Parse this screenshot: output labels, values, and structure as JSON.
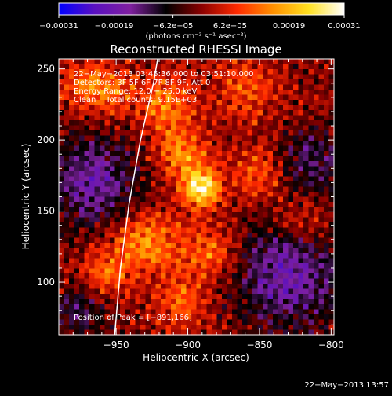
{
  "chart_data": {
    "type": "heatmap",
    "title": "Reconstructed RHESSI Image",
    "xlabel": "Heliocentric X (arcsec)",
    "ylabel": "Heliocentric Y (arcsec)",
    "xlim": [
      -990,
      -798
    ],
    "ylim": [
      63,
      257
    ],
    "x_ticks": [
      -950,
      -900,
      -850,
      -800
    ],
    "x_tick_labels": [
      "−950",
      "−900",
      "−850",
      "−800"
    ],
    "y_ticks": [
      100,
      150,
      200,
      250
    ],
    "y_tick_labels": [
      "100",
      "150",
      "200",
      "250"
    ],
    "colorbar": {
      "min": -0.00031,
      "max": 0.00031,
      "ticks": [
        -0.00031,
        -0.00019,
        -6.2e-05,
        6.2e-05,
        0.00019,
        0.00031
      ],
      "tick_labels": [
        "−0.00031",
        "−0.00019",
        "−6.2e−05",
        "6.2e−05",
        "0.00019",
        "0.00031"
      ],
      "unit_label": "(photons cm⁻² s⁻¹ asec⁻²)",
      "colors": [
        "#0000ff",
        "#5a10c0",
        "#8020a0",
        "#000000",
        "#8a0000",
        "#ff2a00",
        "#ff9000",
        "#ffe020",
        "#ffffff"
      ]
    },
    "annotations": [
      "22−May−2013 03:45:36.000 to 03:51:10.000",
      "Detectors: 3F 5F 6F 7F 8F 9F, Att 0",
      "Energy Range: 12.0 − 25.0 keV",
      "Clean    Total counts: 9.15E+03"
    ],
    "peak_label": "Position of Peak = [−891,166]",
    "peak": {
      "x": -891,
      "y": 166
    },
    "limb_curve": [
      [
        -951,
        63
      ],
      [
        -947,
        110
      ],
      [
        -941,
        155
      ],
      [
        -933,
        200
      ],
      [
        -924,
        240
      ],
      [
        -921,
        257
      ]
    ],
    "sources": [
      {
        "x": -891,
        "y": 166,
        "amp": 1.0,
        "sigma": 9
      },
      {
        "x": -905,
        "y": 190,
        "amp": 0.55,
        "sigma": 12
      },
      {
        "x": -930,
        "y": 128,
        "amp": 0.55,
        "sigma": 16
      },
      {
        "x": -885,
        "y": 120,
        "amp": 0.45,
        "sigma": 14
      },
      {
        "x": -915,
        "y": 225,
        "amp": 0.5,
        "sigma": 14
      },
      {
        "x": -955,
        "y": 235,
        "amp": 0.45,
        "sigma": 12
      },
      {
        "x": -960,
        "y": 105,
        "amp": 0.4,
        "sigma": 12
      },
      {
        "x": -850,
        "y": 175,
        "amp": 0.35,
        "sigma": 14
      },
      {
        "x": -860,
        "y": 235,
        "amp": 0.35,
        "sigma": 14
      },
      {
        "x": -820,
        "y": 140,
        "amp": 0.3,
        "sigma": 12
      },
      {
        "x": -905,
        "y": 85,
        "amp": 0.4,
        "sigma": 12
      },
      {
        "x": -975,
        "y": 240,
        "amp": 0.35,
        "sigma": 10
      }
    ],
    "negative_regions": [
      {
        "x": -965,
        "y": 170,
        "amp": 0.6,
        "sigma": 22
      },
      {
        "x": -830,
        "y": 105,
        "amp": 0.65,
        "sigma": 26
      },
      {
        "x": -815,
        "y": 185,
        "amp": 0.45,
        "sigma": 16
      },
      {
        "x": -975,
        "y": 80,
        "amp": 0.4,
        "sigma": 14
      }
    ]
  },
  "footer": {
    "timestamp": "22−May−2013 13:57"
  }
}
